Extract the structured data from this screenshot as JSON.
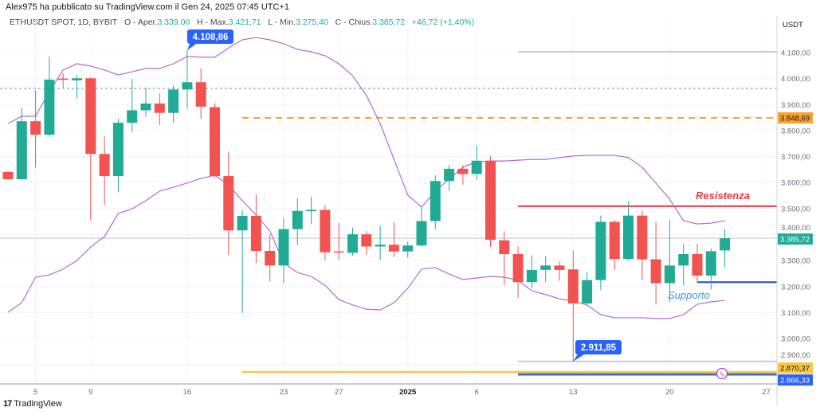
{
  "post": {
    "text": "Alex975 ha pubblicato su TradingView.com il Gen 24, 2025 07:45 UTC+1"
  },
  "legend": {
    "symbol": "ETHUSDT SPOT, 1D, BYBIT",
    "open_label": "O - Aper.",
    "open": "3.339,00",
    "high_label": "H - Max.",
    "high": "3.421,71",
    "low_label": "L - Min.",
    "low": "3.275,40",
    "close_label": "C - Chius.",
    "close": "3.385,72",
    "change": "+46,72 (+1,40%)"
  },
  "footer": {
    "brand": "TradingView",
    "logo_text": "17"
  },
  "colors": {
    "up": "#22ab94",
    "down": "#f05350",
    "band": "#b36ad6",
    "resistance": "#f23645",
    "support": "#1e4fbf",
    "orange": "#f7a22e",
    "yellow": "#f5c842",
    "callout": "#2962ff"
  },
  "chart_data": {
    "type": "candlestick",
    "symbol": "ETHUSDT",
    "currency": "USDT",
    "ylim": [
      2850,
      4120
    ],
    "yticks": [
      4100,
      4000,
      3900,
      3800,
      3700,
      3600,
      3500,
      3400,
      3300,
      3200,
      3100,
      3000,
      2900
    ],
    "ytick_labels": [
      "4.100,00",
      "4.000,00",
      "3.900,00",
      "3.800,00",
      "3.700,00",
      "3.600,00",
      "3.500,00",
      "3.400,00",
      "3.300,00",
      "3.200,00",
      "3.100,00",
      "3.000,00",
      "2.900,00"
    ],
    "xticks": [
      {
        "label": "5",
        "index": 2,
        "bold": false
      },
      {
        "label": "9",
        "index": 6,
        "bold": false
      },
      {
        "label": "16",
        "index": 13,
        "bold": false
      },
      {
        "label": "23",
        "index": 20,
        "bold": false
      },
      {
        "label": "27",
        "index": 24,
        "bold": false
      },
      {
        "label": "2025",
        "index": 29,
        "bold": true
      },
      {
        "label": "6",
        "index": 34,
        "bold": false
      },
      {
        "label": "13",
        "index": 41,
        "bold": false
      },
      {
        "label": "20",
        "index": 48,
        "bold": false
      },
      {
        "label": "27",
        "index": 55,
        "bold": false
      }
    ],
    "ohlc": [
      [
        3641,
        3645,
        3610,
        3613
      ],
      [
        3613,
        3886,
        3610,
        3836
      ],
      [
        3836,
        3955,
        3658,
        3784
      ],
      [
        3784,
        4085,
        3776,
        3996
      ],
      [
        4000,
        4021,
        3965,
        3995
      ],
      [
        3993,
        4013,
        3924,
        4001
      ],
      [
        4001,
        4005,
        3455,
        3710
      ],
      [
        3710,
        3778,
        3515,
        3625
      ],
      [
        3625,
        3845,
        3562,
        3830
      ],
      [
        3830,
        3998,
        3795,
        3878
      ],
      [
        3878,
        3965,
        3853,
        3904
      ],
      [
        3904,
        3943,
        3822,
        3868
      ],
      [
        3868,
        3973,
        3830,
        3958
      ],
      [
        3958,
        4108.86,
        3883,
        3986
      ],
      [
        3986,
        4040,
        3845,
        3892
      ],
      [
        3890,
        3904,
        3619,
        3625
      ],
      [
        3625,
        3717,
        3322,
        3416
      ],
      [
        3416,
        3495,
        3099,
        3472
      ],
      [
        3472,
        3554,
        3291,
        3337
      ],
      [
        3337,
        3401,
        3219,
        3281
      ],
      [
        3281,
        3465,
        3214,
        3421
      ],
      [
        3421,
        3539,
        3358,
        3491
      ],
      [
        3490,
        3546,
        3440,
        3495
      ],
      [
        3495,
        3514,
        3301,
        3332
      ],
      [
        3335,
        3444,
        3303,
        3332
      ],
      [
        3330,
        3426,
        3320,
        3401
      ],
      [
        3401,
        3413,
        3322,
        3354
      ],
      [
        3354,
        3434,
        3301,
        3361
      ],
      [
        3361,
        3449,
        3314,
        3335
      ],
      [
        3335,
        3373,
        3312,
        3358
      ],
      [
        3358,
        3506,
        3354,
        3452
      ],
      [
        3452,
        3628,
        3422,
        3606
      ],
      [
        3606,
        3667,
        3568,
        3653
      ],
      [
        3653,
        3667,
        3592,
        3633
      ],
      [
        3633,
        3743,
        3610,
        3684
      ],
      [
        3684,
        3700,
        3352,
        3380
      ],
      [
        3378,
        3413,
        3206,
        3325
      ],
      [
        3325,
        3354,
        3157,
        3217
      ],
      [
        3217,
        3320,
        3194,
        3264
      ],
      [
        3264,
        3317,
        3217,
        3281
      ],
      [
        3281,
        3296,
        3222,
        3264
      ],
      [
        3266,
        3339,
        2911.85,
        3135
      ],
      [
        3135,
        3255,
        3128,
        3225
      ],
      [
        3225,
        3473,
        3186,
        3449
      ],
      [
        3449,
        3456,
        3263,
        3306
      ],
      [
        3306,
        3526,
        3300,
        3473
      ],
      [
        3473,
        3492,
        3225,
        3305
      ],
      [
        3305,
        3449,
        3131,
        3213
      ],
      [
        3213,
        3455,
        3141,
        3281
      ],
      [
        3281,
        3365,
        3204,
        3325
      ],
      [
        3325,
        3365,
        3217,
        3242
      ],
      [
        3242,
        3347,
        3189,
        3336
      ],
      [
        3339,
        3421.71,
        3275.4,
        3385.72
      ]
    ],
    "bollinger_upper": [
      3827,
      3855,
      3855,
      3950,
      4033,
      4057,
      4048,
      4033,
      4014,
      4026,
      4039,
      4039,
      4057,
      4085,
      4082,
      4082,
      4118,
      4149,
      4158,
      4149,
      4134,
      4112,
      4103,
      4088,
      4057,
      4011,
      3935,
      3827,
      3689,
      3552,
      3506,
      3567,
      3613,
      3659,
      3680,
      3683,
      3683,
      3686,
      3689,
      3689,
      3696,
      3702,
      3705,
      3705,
      3705,
      3696,
      3659,
      3598,
      3536,
      3453,
      3441,
      3444,
      3453
    ],
    "bollinger_lower": [
      3101,
      3138,
      3236,
      3245,
      3267,
      3300,
      3352,
      3392,
      3481,
      3499,
      3530,
      3567,
      3582,
      3598,
      3616,
      3628,
      3591,
      3530,
      3475,
      3414,
      3291,
      3254,
      3239,
      3205,
      3150,
      3129,
      3113,
      3110,
      3138,
      3193,
      3267,
      3273,
      3248,
      3227,
      3233,
      3239,
      3236,
      3224,
      3184,
      3169,
      3153,
      3144,
      3129,
      3092,
      3080,
      3080,
      3080,
      3077,
      3077,
      3092,
      3132,
      3141,
      3147
    ],
    "levels": {
      "dotted_blue": 3962,
      "orange_dashed": {
        "price": 3848.69,
        "label": "3.848,69",
        "from_index": 17
      },
      "last_price": {
        "price": 3385.72,
        "label": "3.385,72"
      },
      "resistance": {
        "price": 3509,
        "label": "Resistenza",
        "from_index": 37
      },
      "support": {
        "price": 3217,
        "label": "Supporto",
        "from_index": 50
      },
      "high_marker": {
        "price": 4108.86,
        "label": "4.108,86",
        "index": 13,
        "line_from_index": 37
      },
      "low_marker": {
        "price": 2911.85,
        "label": "2.911,85",
        "index": 41,
        "line_from_index": 37
      },
      "yellow": {
        "price": 2870.37,
        "label": "2.870,37",
        "from_index": 17
      },
      "blue": {
        "price": 2866.33,
        "label": "2.866,33",
        "from_index": 37
      }
    }
  }
}
